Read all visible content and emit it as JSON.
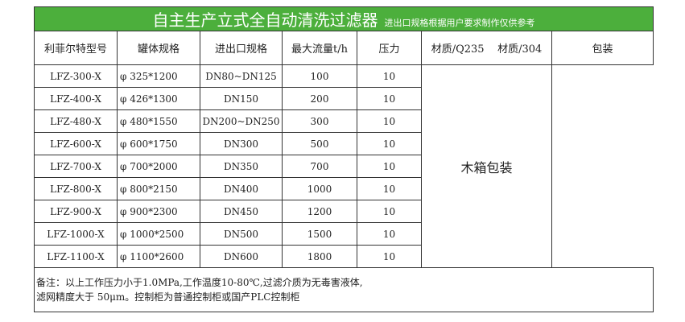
{
  "title": "自主生产立式全自动清洗过滤器",
  "subtitle": "进出口规格根据用户要求制作仅供参考",
  "headers": [
    "利菲尔特型号",
    "罐体规格",
    "进出口规格",
    "最大流量t/h",
    "压力"
  ],
  "packaging_header": "包装",
  "material": "材质/Q235    材质/304",
  "packaging": "木箱包装",
  "rows": [
    [
      "LFZ-300-X",
      "φ 325*1200",
      "DN80~DN125",
      "100",
      "10"
    ],
    [
      "LFZ-400-X",
      "φ 426*1300",
      "DN150",
      "200",
      "10"
    ],
    [
      "LFZ-480-X",
      "φ 480*1550",
      "DN200~DN250",
      "300",
      "10"
    ],
    [
      "LFZ-600-X",
      "φ 600*1750",
      "DN300",
      "500",
      "10"
    ],
    [
      "LFZ-700-X",
      "φ 700*2000",
      "DN350",
      "700",
      "10"
    ],
    [
      "LFZ-800-X",
      "φ 800*2150",
      "DN400",
      "1000",
      "10"
    ],
    [
      "LFZ-900-X",
      "φ 900*2300",
      "DN450",
      "1200",
      "10"
    ],
    [
      "LFZ-1000-X",
      "φ 1000*2500",
      "DN500",
      "1500",
      "10"
    ],
    [
      "LFZ-1100-X",
      "φ 1100*2600",
      "DN600",
      "1800",
      "10"
    ]
  ],
  "note_line1": "备注：以上工作压力小于1.0MPa,工作温度10-80℃,过滤介质为无毒害液体,",
  "note_line2": "滤网精度大于 50μm。控制柜为普通控制柜或国产PLC控制柜",
  "colors": {
    "title_bg": "#4caf3c"
  }
}
